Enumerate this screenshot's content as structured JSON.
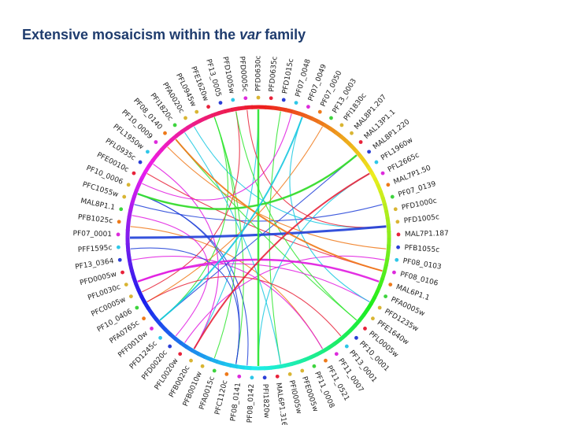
{
  "title": {
    "prefix": "Extensive mosaicism within the ",
    "italic": "var",
    "suffix": " family"
  },
  "diagram": {
    "type": "chord",
    "labels": [
      "PFD0630c",
      "PFD0635c",
      "PFD1015c",
      "PF07_0048",
      "PF07_0049",
      "PF07_0050",
      "PF13_0003",
      "PFI1830c",
      "MAL8P1.207",
      "MAL13P1.1",
      "MAL8P1.220",
      "PFL1960w",
      "PFL2665c",
      "MAL7P1.50",
      "PF07_0139",
      "PFD1000c",
      "PFD1005c",
      "MAL7P1.187",
      "PFB1055c",
      "PF08_0103",
      "PF08_0106",
      "MAL6P1.1",
      "PFA0005w",
      "PFD1235w",
      "PFE1640w",
      "PFL0005w",
      "PF10_0001",
      "PF13_0001",
      "PF11_0007",
      "PF11_0521",
      "PF11_0008",
      "PFE0005w",
      "PFI0005w",
      "MAL6P1.316",
      "PFI1820w",
      "PF08_0142",
      "PF08_0141",
      "PFC1120c",
      "PFA0015c",
      "PFB0010w",
      "PFB0020c",
      "PFL0020w",
      "PFD0020c",
      "PFD1245c",
      "PFF0010w",
      "PFA0765c",
      "PF10_0406",
      "PFC0005w",
      "PFL0030c",
      "PFD0005w",
      "PF13_0364",
      "PFF1595c",
      "PF07_0001",
      "PFB1025c",
      "MAL8P1.1",
      "PFC1055w",
      "PF10_0006",
      "PFE0010c",
      "PFL0935c",
      "PFL1950w",
      "PF10_0009",
      "PF08_0140",
      "PFI1820c",
      "PFA0020c",
      "PFL0945w",
      "PFE1620w",
      "PF13_0005",
      "PFD1005w",
      "PFD0005c"
    ],
    "arcs": [
      {
        "name": "blue",
        "color": "#1f3fd8"
      },
      {
        "name": "magenta",
        "color": "#e01ae0"
      },
      {
        "name": "red",
        "color": "#e8233a"
      },
      {
        "name": "orange",
        "color": "#f07818"
      },
      {
        "name": "green",
        "color": "#2fe52f"
      },
      {
        "name": "cyan",
        "color": "#18c8e0"
      }
    ],
    "dot_colors": [
      "#d9b533",
      "#e8223a",
      "#2b3fd6",
      "#2ec7e8",
      "#dd2adc",
      "#ee7a1a",
      "#3ed43e",
      "#d9b533"
    ]
  }
}
